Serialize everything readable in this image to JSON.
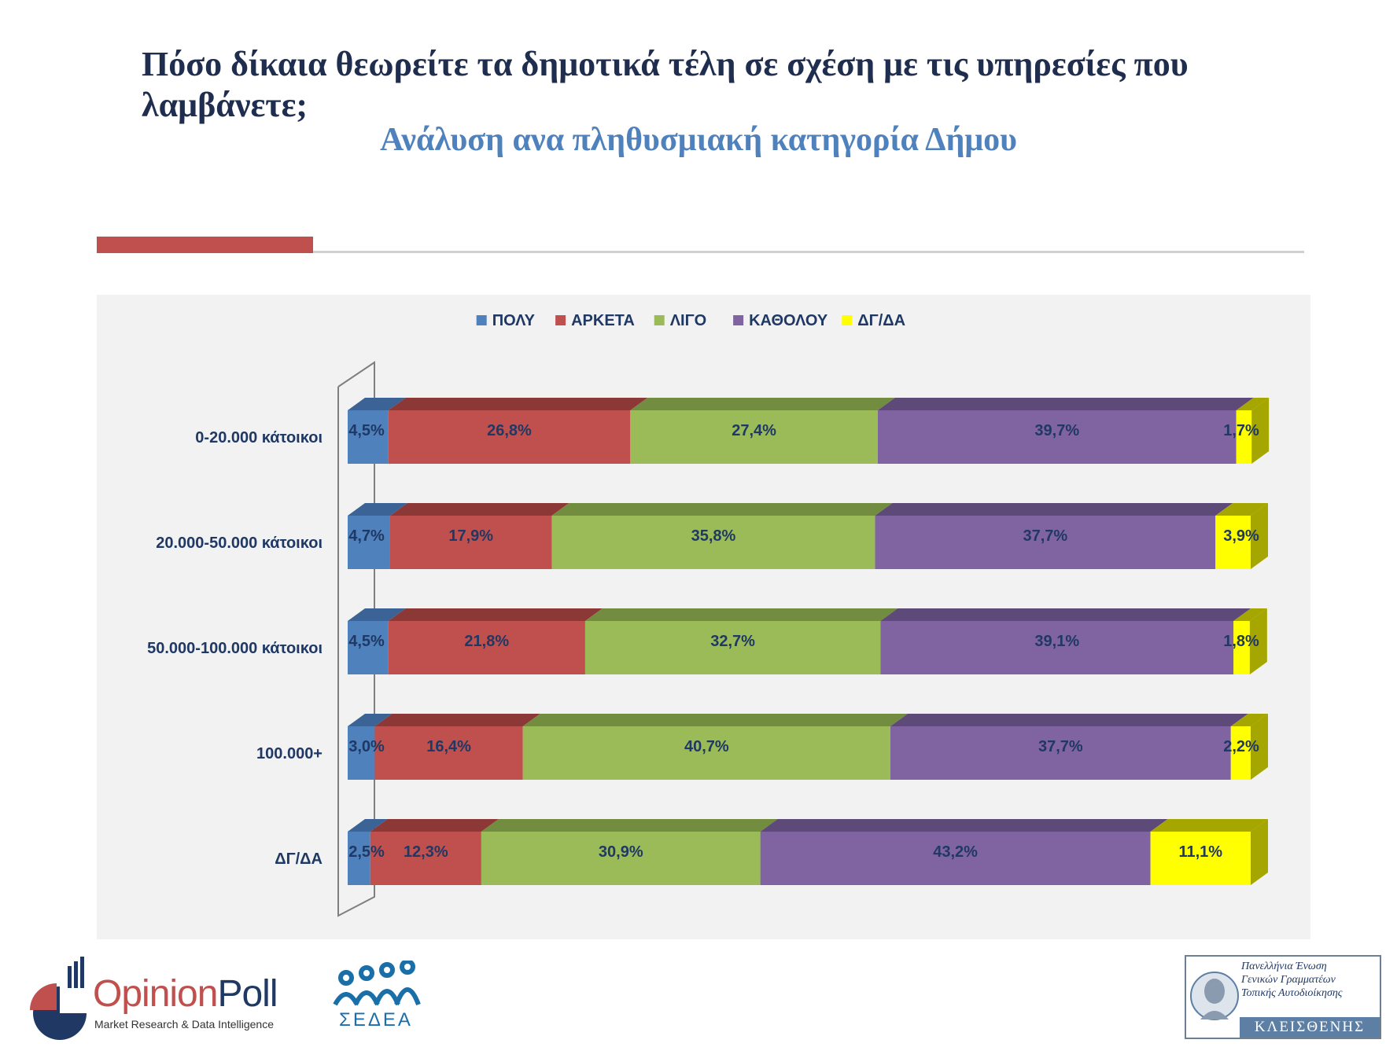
{
  "header": {
    "title": "Πόσο δίκαια θεωρείτε τα δημοτικά τέλη σε σχέση με τις υπηρεσίες που λαμβάνετε;",
    "subtitle": "Ανάλυση ανα πληθυσμιακή κατηγορία Δήμου"
  },
  "chart_data": {
    "type": "bar",
    "orientation": "horizontal",
    "stacked": true,
    "percent_stacked": true,
    "style": "3d",
    "legend_position": "top",
    "categories": [
      "0-20.000 κάτοικοι",
      "20.000-50.000 κάτοικοι",
      "50.000-100.000 κάτοικοι",
      "100.000+",
      "ΔΓ/ΔΑ"
    ],
    "series": [
      {
        "name": "ΠΟΛΥ",
        "color": "#4f81bd",
        "side": "#3b6396",
        "values": [
          4.5,
          4.7,
          4.5,
          3.0,
          2.5
        ],
        "labels": [
          "4,5%",
          "4,7%",
          "4,5%",
          "3,0%",
          "2,5%"
        ]
      },
      {
        "name": "ΑΡΚΕΤΑ",
        "color": "#c0504d",
        "side": "#8c3836",
        "values": [
          26.8,
          17.9,
          21.8,
          16.4,
          12.3
        ],
        "labels": [
          "26,8%",
          "17,9%",
          "21,8%",
          "16,4%",
          "12,3%"
        ]
      },
      {
        "name": "ΛΙΓΟ",
        "color": "#9bbb59",
        "side": "#728c40",
        "values": [
          27.4,
          35.8,
          32.7,
          40.7,
          30.9
        ],
        "labels": [
          "27,4%",
          "35,8%",
          "32,7%",
          "40,7%",
          "30,9%"
        ]
      },
      {
        "name": "ΚΑΘΟΛΟΥ",
        "color": "#8064a2",
        "side": "#5e4a78",
        "values": [
          39.7,
          37.7,
          39.1,
          37.7,
          43.2
        ],
        "labels": [
          "39,7%",
          "37,7%",
          "39,1%",
          "37,7%",
          "43,2%"
        ]
      },
      {
        "name": "ΔΓ/ΔΑ",
        "color": "#ffff00",
        "side": "#a6a600",
        "values": [
          1.7,
          3.9,
          1.8,
          2.2,
          11.1
        ],
        "labels": [
          "1,7%",
          "3,9%",
          "1,8%",
          "2,2%",
          "11,1%"
        ]
      }
    ],
    "xlim": [
      0,
      100
    ],
    "label_color": "#1f3864",
    "category_label_color": "#1f3864"
  },
  "logos": {
    "opinionpoll_prefix": "Opinion",
    "opinionpoll_suffix": "Poll",
    "opinionpoll_tagline": "Market Research & Data Intelligence",
    "sedea": "ΣΕΔΕΑ",
    "kleisthenis_line1": "Πανελλήνια Ένωση",
    "kleisthenis_line2": "Γενικών Γραμματέων",
    "kleisthenis_line3": "Τοπικής Αυτοδιοίκησης",
    "kleisthenis_name": "ΚΛΕΙΣΘΕΝΗΣ"
  },
  "colors": {
    "accent_red": "#c0504d",
    "title_navy": "#1f2d4e",
    "subtitle_blue": "#4f81bd"
  }
}
